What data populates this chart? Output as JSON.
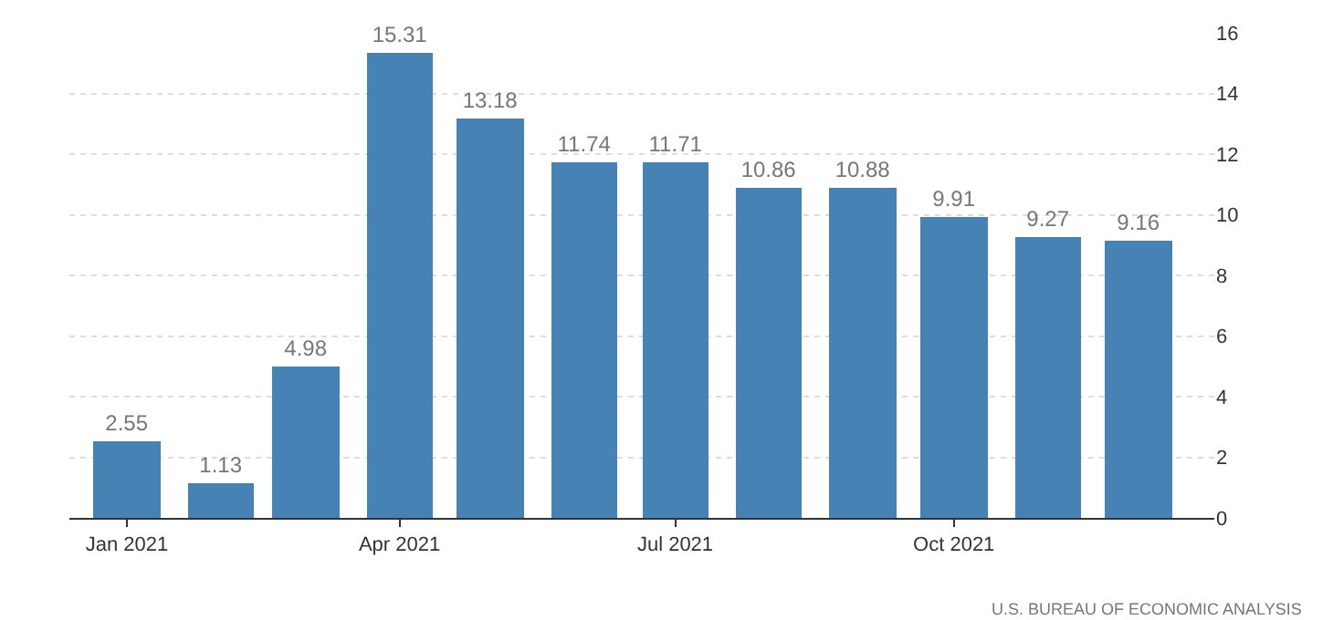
{
  "chart_data": {
    "type": "bar",
    "x": [
      "2021-01",
      "2021-02",
      "2021-03",
      "2021-04",
      "2021-05",
      "2021-06",
      "2021-07",
      "2021-08",
      "2021-09",
      "2021-10",
      "2021-11",
      "2021-12"
    ],
    "values": [
      2.55,
      1.13,
      4.98,
      15.31,
      13.18,
      11.74,
      11.71,
      10.86,
      10.88,
      9.91,
      9.27,
      9.16
    ],
    "color": "#4682b4",
    "data_labels": true,
    "xlim": [
      "2020-12-13",
      "2021-12-26"
    ],
    "xticks": [
      {
        "value": "2021-01",
        "label": "Jan 2021"
      },
      {
        "value": "2021-04",
        "label": "Apr 2021"
      },
      {
        "value": "2021-07",
        "label": "Jul 2021"
      },
      {
        "value": "2021-10",
        "label": "Oct 2021"
      }
    ],
    "ylim": [
      0,
      16
    ],
    "yticks": [
      0,
      2,
      4,
      6,
      8,
      10,
      12,
      14,
      16
    ],
    "grid": "y",
    "legend": false,
    "annotations": [
      "U.S. BUREAU OF ECONOMIC ANALYSIS"
    ]
  }
}
